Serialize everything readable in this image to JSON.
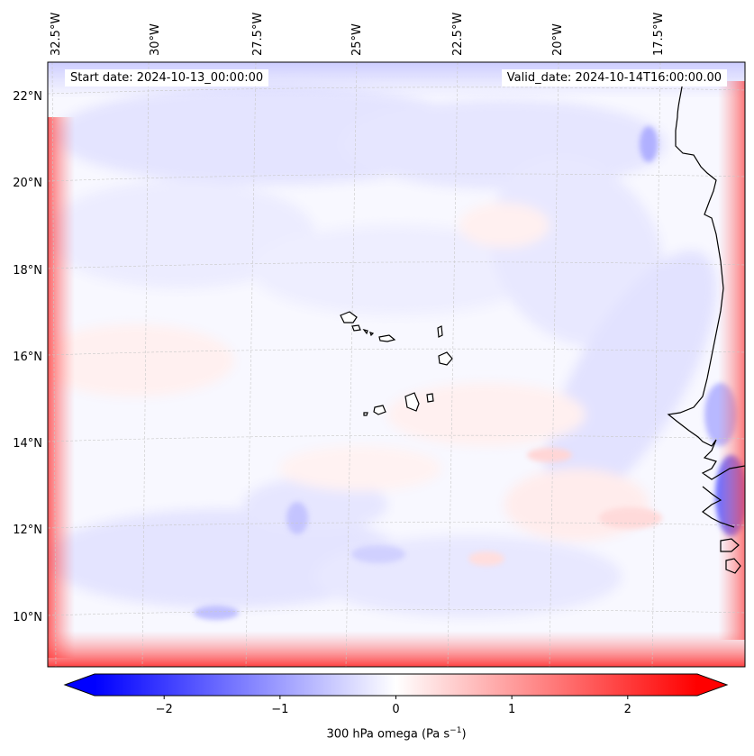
{
  "map": {
    "start_date_label": "Start date: 2024-10-13_00:00:00",
    "valid_date_label": "Valid_date: 2024-10-14T16:00:00.00",
    "lon_labels": [
      "32.5°W",
      "30°W",
      "27.5°W",
      "25°W",
      "22.5°W",
      "20°W",
      "17.5°W"
    ],
    "lat_labels": [
      "22°N",
      "20°N",
      "18°N",
      "16°N",
      "14°N",
      "12°N",
      "10°N"
    ],
    "field_label": "300 hPa omega",
    "units_base": "(Pa s",
    "units_exp": "−1",
    "units_close": ")",
    "features": [
      "Cape Verde islands",
      "West African coastline"
    ]
  },
  "colorbar": {
    "ticks": [
      "−2",
      "−1",
      "0",
      "1",
      "2"
    ],
    "tick_values": [
      -2,
      -1,
      0,
      1,
      2
    ],
    "range": [
      -2.6,
      2.6
    ],
    "cmap": "bwr",
    "extend": "both",
    "neg_color": "#0000ff",
    "mid_color": "#ffffff",
    "pos_color": "#ff0000"
  }
}
